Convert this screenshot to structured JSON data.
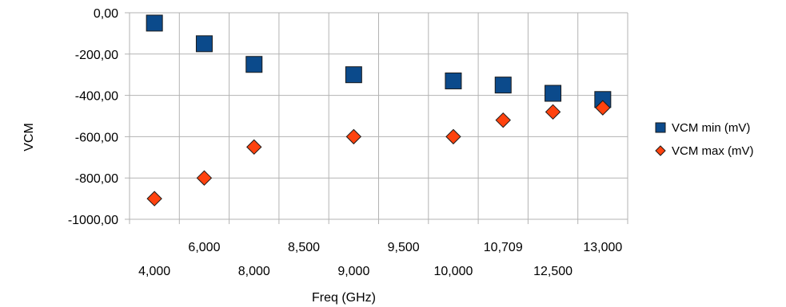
{
  "chart_data": {
    "type": "scatter",
    "categories": [
      "4,000",
      "6,000",
      "8,000",
      "8,500",
      "9,000",
      "9,500",
      "10,000",
      "10,709",
      "12,500",
      "13,000"
    ],
    "series": [
      {
        "name": "VCM min (mV)",
        "color": "#0b4a8b",
        "marker": "square",
        "values": [
          -50,
          -150,
          -250,
          -300,
          -330,
          -350,
          -390,
          -420
        ]
      },
      {
        "name": "VCM max (mV)",
        "color": "#ff420e",
        "marker": "diamond",
        "values": [
          -900,
          -800,
          -650,
          -600,
          -600,
          -520,
          -480,
          -460
        ]
      }
    ],
    "point_categories": [
      "4,000",
      "6,000",
      "8,000",
      "9,000",
      "10,000",
      "10,709",
      "12,500",
      "13,000"
    ],
    "xlabel": "Freq (GHz)",
    "ylabel": "VCM",
    "ylim": [
      -1000,
      0
    ],
    "yticks": [
      "0,00",
      "-200,00",
      "-400,00",
      "-600,00",
      "-800,00",
      "-1000,00"
    ],
    "xticks_upper": [
      "6,000",
      "8,500",
      "9,500",
      "10,709",
      "13,000"
    ],
    "xticks_lower": [
      "4,000",
      "8,000",
      "9,000",
      "10,000",
      "12,500"
    ],
    "grid": true,
    "legend_position": "right"
  }
}
